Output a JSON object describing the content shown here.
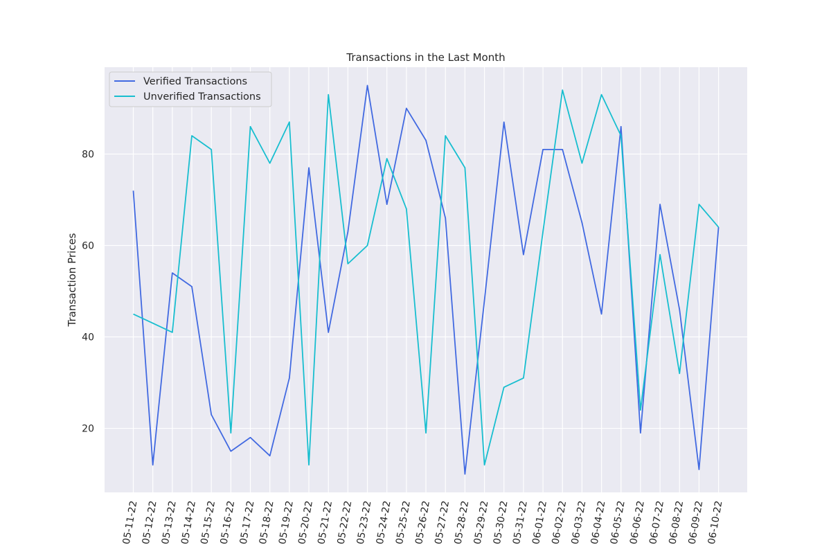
{
  "chart_data": {
    "type": "line",
    "title": "Transactions in the Last Month",
    "xlabel": "",
    "ylabel": "Transaction Prices",
    "categories": [
      "05-11-22",
      "05-12-22",
      "05-13-22",
      "05-14-22",
      "05-15-22",
      "05-16-22",
      "05-17-22",
      "05-18-22",
      "05-19-22",
      "05-20-22",
      "05-21-22",
      "05-22-22",
      "05-23-22",
      "05-24-22",
      "05-25-22",
      "05-26-22",
      "05-27-22",
      "05-28-22",
      "05-29-22",
      "05-30-22",
      "05-31-22",
      "06-01-22",
      "06-02-22",
      "06-03-22",
      "06-04-22",
      "06-05-22",
      "06-06-22",
      "06-07-22",
      "06-08-22",
      "06-09-22",
      "06-10-22"
    ],
    "ylim": [
      6,
      99
    ],
    "yticks": [
      20,
      40,
      60,
      80
    ],
    "grid": true,
    "legend_position": "top-left",
    "series": [
      {
        "name": "Verified Transactions",
        "color": "#4169e1",
        "values": [
          72,
          12,
          54,
          51,
          23,
          15,
          18,
          14,
          31,
          77,
          41,
          63,
          95,
          69,
          90,
          83,
          66,
          10,
          48,
          87,
          58,
          81,
          81,
          65,
          45,
          86,
          19,
          69,
          46,
          11,
          64
        ]
      },
      {
        "name": "Unverified Transactions",
        "color": "#17becf",
        "values": [
          45,
          43,
          41,
          84,
          81,
          19,
          86,
          78,
          87,
          12,
          93,
          56,
          60,
          79,
          68,
          19,
          84,
          77,
          12,
          29,
          31,
          63,
          94,
          78,
          93,
          84,
          24,
          58,
          32,
          69,
          64
        ]
      }
    ]
  }
}
